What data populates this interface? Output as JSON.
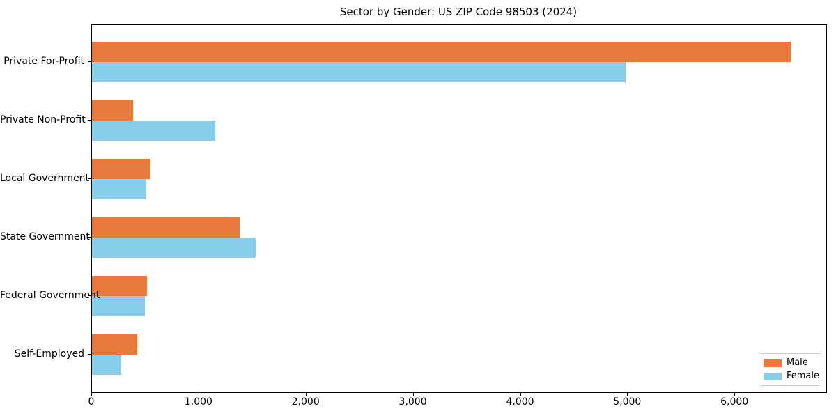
{
  "chart_data": {
    "type": "bar",
    "orientation": "horizontal",
    "title": "Sector by Gender: US ZIP Code 98503 (2024)",
    "categories": [
      "Private For-Profit",
      "Private Non-Profit",
      "Local Government",
      "State Government",
      "Federal Government",
      "Self-Employed"
    ],
    "series": [
      {
        "name": "Male",
        "color": "#E8793C",
        "values": [
          6520,
          385,
          545,
          1375,
          515,
          420
        ]
      },
      {
        "name": "Female",
        "color": "#87CEEB",
        "values": [
          4980,
          1150,
          505,
          1525,
          495,
          270
        ]
      }
    ],
    "xlabel": "",
    "ylabel": "",
    "xlim": [
      0,
      6850
    ],
    "x_ticks": [
      0,
      1000,
      2000,
      3000,
      4000,
      5000,
      6000
    ],
    "x_tick_labels": [
      "0",
      "1,000",
      "2,000",
      "3,000",
      "4,000",
      "5,000",
      "6,000"
    ],
    "grid": false,
    "legend_position": "lower right",
    "spine_color": "#000000",
    "background": "#ffffff"
  }
}
